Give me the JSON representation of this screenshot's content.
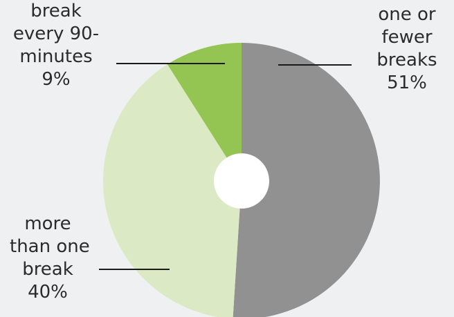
{
  "chart_data": {
    "type": "pie",
    "style": "donut",
    "title": "",
    "slices": [
      {
        "lines": [
          "one or",
          "fewer",
          "breaks"
        ],
        "percent_label": "51%",
        "value": 51,
        "color": "#919191"
      },
      {
        "lines": [
          "more",
          "than one",
          "break"
        ],
        "percent_label": "40%",
        "value": 40,
        "color": "#dbeac4"
      },
      {
        "lines": [
          "break",
          "every 90-",
          "minutes"
        ],
        "percent_label": "9%",
        "value": 9,
        "color": "#94c452"
      }
    ],
    "start_angle_deg": 0,
    "direction": "clockwise",
    "hole_color": "#ffffff",
    "leader_line_color": "#1a1a1a"
  }
}
